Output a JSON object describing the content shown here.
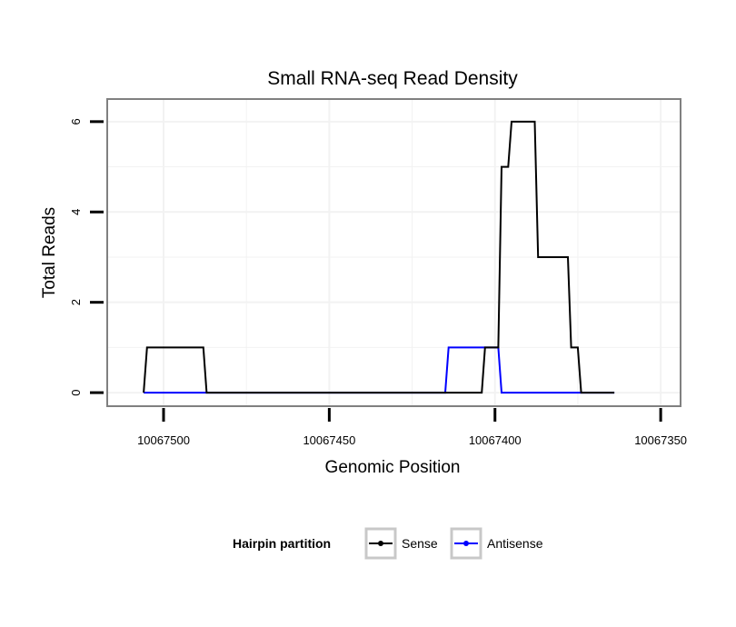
{
  "chart_data": {
    "type": "line",
    "title": "Small RNA-seq Read Density",
    "xlabel": "Genomic Position",
    "ylabel": "Total Reads",
    "x_reversed": true,
    "xlim": [
      10067517,
      10067344
    ],
    "ylim": [
      -0.3,
      6.5
    ],
    "x_ticks": [
      {
        "value": 10067500,
        "label": "10067500"
      },
      {
        "value": 10067450,
        "label": "10067450"
      },
      {
        "value": 10067400,
        "label": "10067400"
      },
      {
        "value": 10067350,
        "label": "10067350"
      }
    ],
    "x_minor_grid": [
      10067475,
      10067425,
      10067375
    ],
    "y_ticks": [
      {
        "value": 0,
        "label": "0"
      },
      {
        "value": 2,
        "label": "2"
      },
      {
        "value": 4,
        "label": "4"
      },
      {
        "value": 6,
        "label": "6"
      }
    ],
    "y_minor_grid": [
      1,
      3,
      5
    ],
    "legend": {
      "title": "Hairpin partition",
      "position": "bottom",
      "entries": [
        {
          "name": "Sense",
          "color": "#000000"
        },
        {
          "name": "Antisense",
          "color": "#0000ff"
        }
      ]
    },
    "series": [
      {
        "name": "Sense",
        "color": "#000000",
        "x": [
          10067506,
          10067505,
          10067488,
          10067487,
          10067404,
          10067403,
          10067399,
          10067398,
          10067396,
          10067395,
          10067388,
          10067387,
          10067378,
          10067377,
          10067375,
          10067374,
          10067365,
          10067364
        ],
        "y": [
          0,
          1,
          1,
          0,
          0,
          1,
          1,
          5,
          5,
          6,
          6,
          3,
          3,
          1,
          1,
          0,
          0,
          0
        ]
      },
      {
        "name": "Antisense",
        "color": "#0000ff",
        "x": [
          10067506,
          10067505,
          10067488,
          10067487,
          10067415,
          10067414,
          10067399,
          10067398,
          10067385,
          10067384,
          10067364
        ],
        "y": [
          0,
          0,
          0,
          0,
          0,
          1,
          1,
          0,
          0,
          0,
          0
        ]
      }
    ]
  }
}
